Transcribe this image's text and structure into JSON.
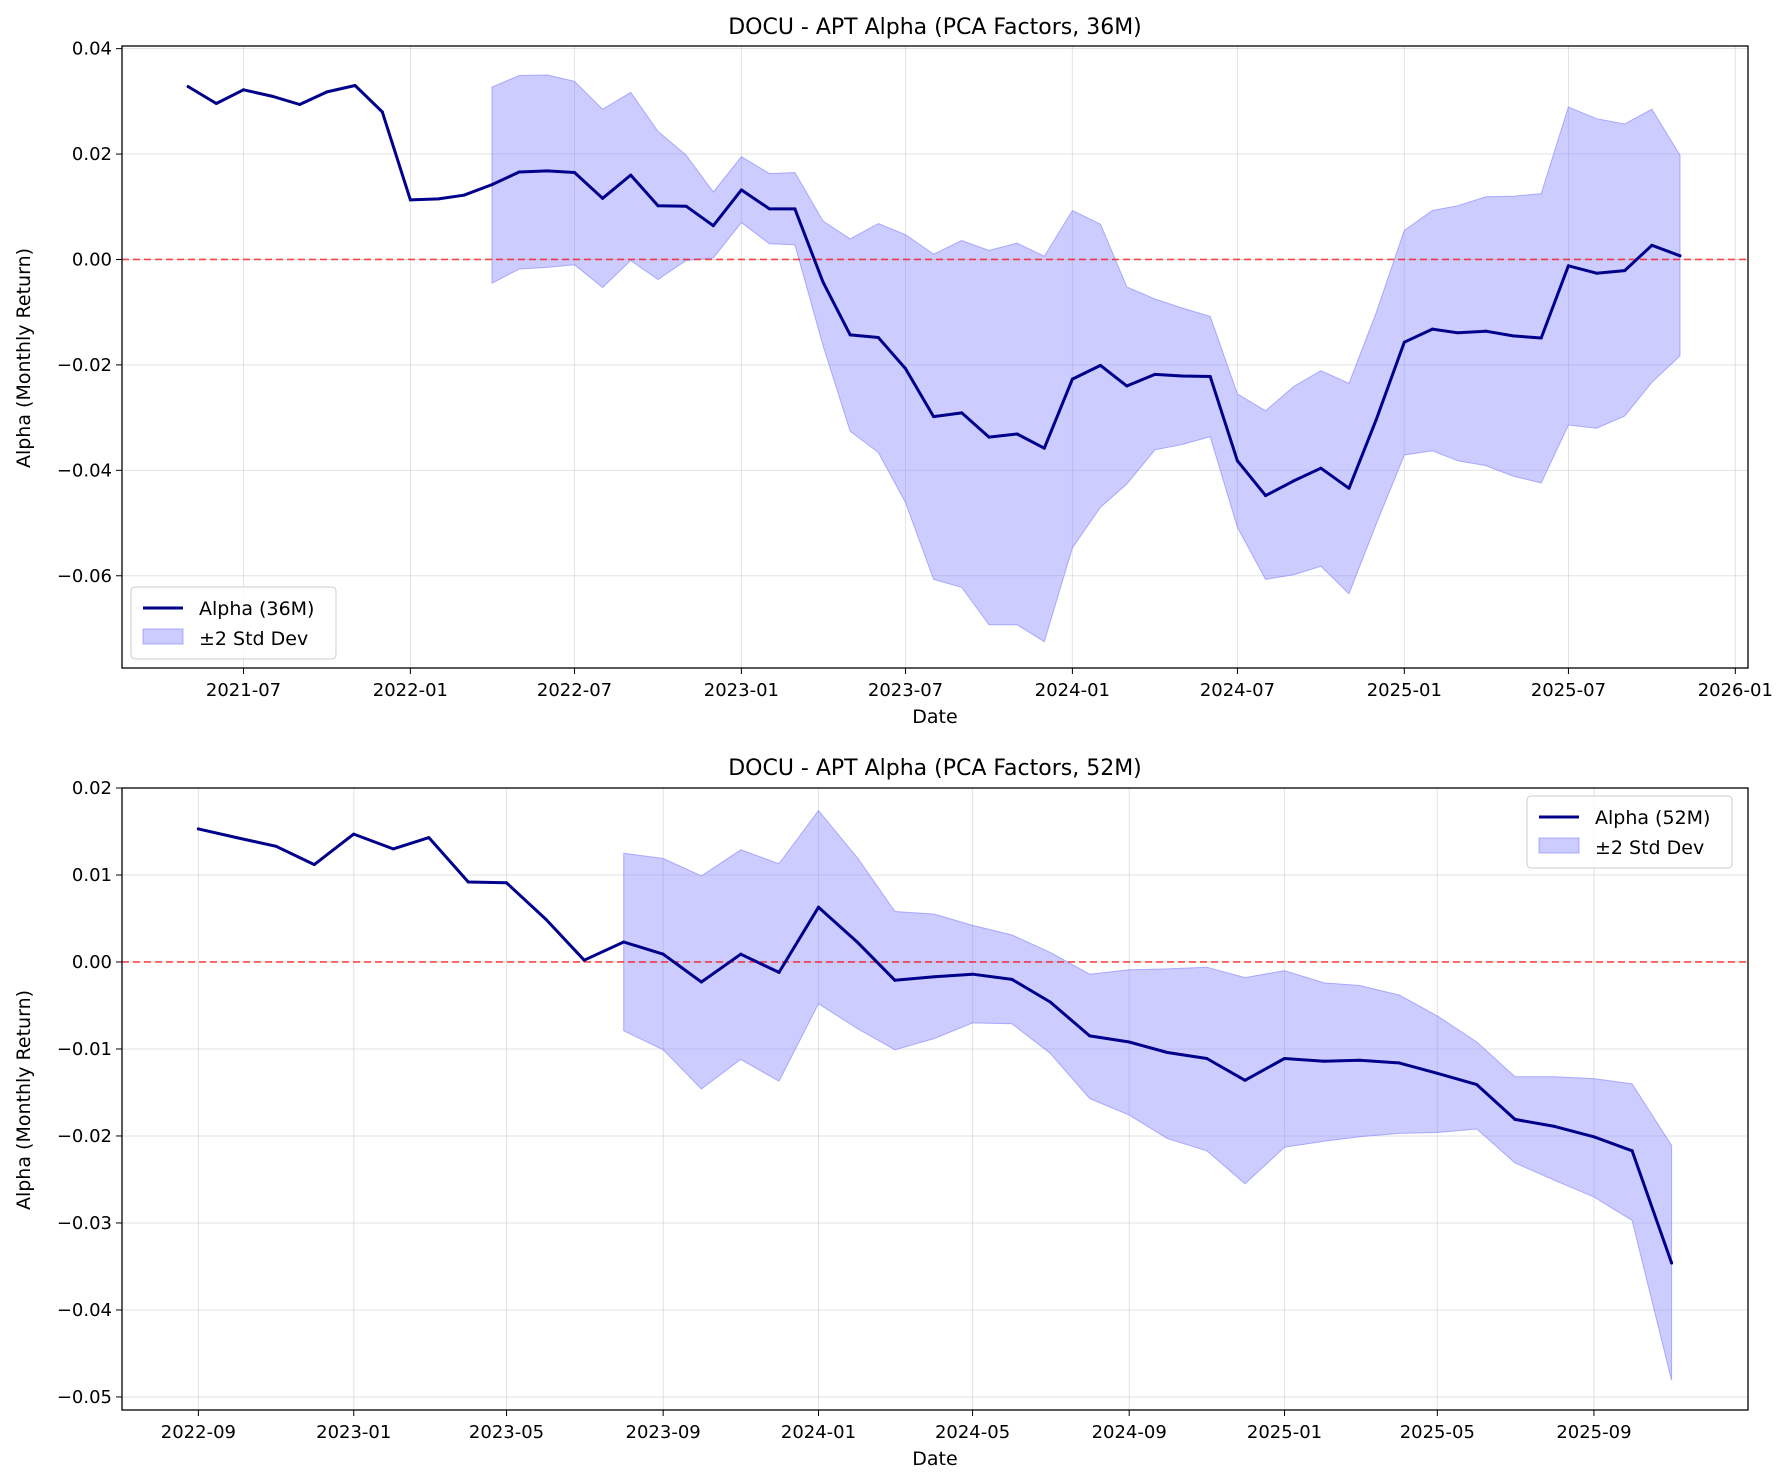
{
  "chart_data": [
    {
      "type": "line",
      "title": "DOCU - APT Alpha (PCA Factors, 36M)",
      "xlabel": "Date",
      "ylabel": "Alpha (Monthly Return)",
      "xlim": [
        "2021-02-17",
        "2026-01-15"
      ],
      "ylim": [
        -0.0775,
        0.0405
      ],
      "xticks": [
        "2021-07",
        "2022-01",
        "2022-07",
        "2023-01",
        "2023-07",
        "2024-01",
        "2024-07",
        "2025-01",
        "2025-07",
        "2026-01"
      ],
      "yticks": [
        -0.06,
        -0.04,
        -0.02,
        0.0,
        0.02,
        0.04
      ],
      "ytick_labels": [
        "−0.06",
        "−0.04",
        "−0.02",
        "0.00",
        "0.02",
        "0.04"
      ],
      "grid": true,
      "legend": "lower-left",
      "reference_line": {
        "y": 0.0,
        "color": "#ff0000",
        "style": "dashed"
      },
      "series": [
        {
          "name": "Alpha (36M)",
          "color": "#00008b",
          "x": [
            "2021-05",
            "2021-06",
            "2021-07",
            "2021-08",
            "2021-09",
            "2021-10",
            "2021-11",
            "2021-12",
            "2022-01",
            "2022-02",
            "2022-03",
            "2022-04",
            "2022-05",
            "2022-06",
            "2022-07",
            "2022-08",
            "2022-09",
            "2022-10",
            "2022-11",
            "2022-12",
            "2023-01",
            "2023-02",
            "2023-03",
            "2023-04",
            "2023-05",
            "2023-06",
            "2023-07",
            "2023-08",
            "2023-09",
            "2023-10",
            "2023-11",
            "2023-12",
            "2024-01",
            "2024-02",
            "2024-03",
            "2024-04",
            "2024-05",
            "2024-06",
            "2024-07",
            "2024-08",
            "2024-09",
            "2024-10",
            "2024-11",
            "2024-12",
            "2025-01",
            "2025-02",
            "2025-03",
            "2025-04",
            "2025-05",
            "2025-06",
            "2025-07",
            "2025-08",
            "2025-09",
            "2025-10",
            "2025-11"
          ],
          "y": [
            0.0328,
            0.0296,
            0.0322,
            0.031,
            0.0294,
            0.0318,
            0.033,
            0.028,
            0.0113,
            0.0115,
            0.0122,
            0.0142,
            0.0166,
            0.0168,
            0.0165,
            0.0116,
            0.016,
            0.0102,
            0.0101,
            0.0064,
            0.0132,
            0.0096,
            0.0096,
            -0.0043,
            -0.0143,
            -0.0148,
            -0.0207,
            -0.0298,
            -0.0291,
            -0.0337,
            -0.0331,
            -0.0358,
            -0.0227,
            -0.0201,
            -0.024,
            -0.0218,
            -0.0221,
            -0.0222,
            -0.0382,
            -0.0448,
            -0.042,
            -0.0396,
            -0.0434,
            -0.0304,
            -0.0157,
            -0.0132,
            -0.0139,
            -0.0136,
            -0.0145,
            -0.0149,
            -0.0012,
            -0.0026,
            -0.0021,
            0.0027,
            0.0007
          ]
        }
      ],
      "band": {
        "name": "±2 Std Dev",
        "color": "#8080ff",
        "x": [
          "2022-04",
          "2022-05",
          "2022-06",
          "2022-07",
          "2022-08",
          "2022-09",
          "2022-10",
          "2022-11",
          "2022-12",
          "2023-01",
          "2023-02",
          "2023-03",
          "2023-04",
          "2023-05",
          "2023-06",
          "2023-07",
          "2023-08",
          "2023-09",
          "2023-10",
          "2023-11",
          "2023-12",
          "2024-01",
          "2024-02",
          "2024-03",
          "2024-04",
          "2024-05",
          "2024-06",
          "2024-07",
          "2024-08",
          "2024-09",
          "2024-10",
          "2024-11",
          "2024-12",
          "2025-01",
          "2025-02",
          "2025-03",
          "2025-04",
          "2025-05",
          "2025-06",
          "2025-07",
          "2025-08",
          "2025-09",
          "2025-10",
          "2025-11"
        ],
        "upper": [
          0.0327,
          0.0349,
          0.035,
          0.0338,
          0.0285,
          0.0317,
          0.0243,
          0.0198,
          0.0128,
          0.0195,
          0.0163,
          0.0165,
          0.0073,
          0.0039,
          0.0068,
          0.0047,
          0.001,
          0.0036,
          0.0017,
          0.0031,
          0.0006,
          0.0093,
          0.0067,
          -0.0052,
          -0.0075,
          -0.0092,
          -0.0108,
          -0.0255,
          -0.0287,
          -0.0241,
          -0.0211,
          -0.0235,
          -0.0101,
          0.0055,
          0.0093,
          0.0102,
          0.0119,
          0.012,
          0.0125,
          0.0289,
          0.0267,
          0.0257,
          0.0285,
          0.0198
        ],
        "lower": [
          -0.0045,
          -0.0018,
          -0.0015,
          -0.001,
          -0.0053,
          -0.0002,
          -0.0038,
          -0.0002,
          0.0003,
          0.007,
          0.003,
          0.0028,
          -0.0163,
          -0.0326,
          -0.0366,
          -0.0461,
          -0.0607,
          -0.0622,
          -0.0693,
          -0.0693,
          -0.0725,
          -0.0547,
          -0.047,
          -0.0426,
          -0.0361,
          -0.0351,
          -0.0336,
          -0.0508,
          -0.0607,
          -0.0598,
          -0.0582,
          -0.0634,
          -0.0502,
          -0.0371,
          -0.0363,
          -0.0382,
          -0.0391,
          -0.0411,
          -0.0424,
          -0.0314,
          -0.032,
          -0.0297,
          -0.0233,
          -0.0183
        ]
      }
    },
    {
      "type": "line",
      "title": "DOCU - APT Alpha (PCA Factors, 52M)",
      "xlabel": "Date",
      "ylabel": "Alpha (Monthly Return)",
      "xlim": [
        "2022-07-03",
        "2025-12-31"
      ],
      "ylim": [
        -0.0515,
        0.02
      ],
      "xticks": [
        "2022-09",
        "2023-01",
        "2023-05",
        "2023-09",
        "2024-01",
        "2024-05",
        "2024-09",
        "2025-01",
        "2025-05",
        "2025-09"
      ],
      "yticks": [
        -0.05,
        -0.04,
        -0.03,
        -0.02,
        -0.01,
        0.0,
        0.01,
        0.02
      ],
      "ytick_labels": [
        "−0.05",
        "−0.04",
        "−0.03",
        "−0.02",
        "−0.01",
        "0.00",
        "0.01",
        "0.02"
      ],
      "grid": true,
      "legend": "upper-right",
      "reference_line": {
        "y": 0.0,
        "color": "#ff0000",
        "style": "dashed"
      },
      "series": [
        {
          "name": "Alpha (52M)",
          "color": "#00008b",
          "x": [
            "2022-09",
            "2022-10",
            "2022-11",
            "2022-12",
            "2023-01",
            "2023-02",
            "2023-03",
            "2023-04",
            "2023-05",
            "2023-06",
            "2023-07",
            "2023-08",
            "2023-09",
            "2023-10",
            "2023-11",
            "2023-12",
            "2024-01",
            "2024-02",
            "2024-03",
            "2024-04",
            "2024-05",
            "2024-06",
            "2024-07",
            "2024-08",
            "2024-09",
            "2024-10",
            "2024-11",
            "2024-12",
            "2025-01",
            "2025-02",
            "2025-03",
            "2025-04",
            "2025-05",
            "2025-06",
            "2025-07",
            "2025-08",
            "2025-09",
            "2025-10",
            "2025-11"
          ],
          "y": [
            0.0153,
            0.0143,
            0.0133,
            0.0112,
            0.0147,
            0.013,
            0.0143,
            0.0092,
            0.0091,
            0.0049,
            0.0002,
            0.0023,
            0.0009,
            -0.0023,
            0.0009,
            -0.0012,
            0.0063,
            0.0022,
            -0.0021,
            -0.0017,
            -0.0014,
            -0.002,
            -0.0046,
            -0.0085,
            -0.0092,
            -0.0104,
            -0.0111,
            -0.0136,
            -0.0111,
            -0.0114,
            -0.0113,
            -0.0116,
            -0.0128,
            -0.0141,
            -0.0181,
            -0.0189,
            -0.0201,
            -0.0217,
            -0.0346
          ]
        }
      ],
      "band": {
        "name": "±2 Std Dev",
        "color": "#8080ff",
        "x": [
          "2023-08",
          "2023-09",
          "2023-10",
          "2023-11",
          "2023-12",
          "2024-01",
          "2024-02",
          "2024-03",
          "2024-04",
          "2024-05",
          "2024-06",
          "2024-07",
          "2024-08",
          "2024-09",
          "2024-10",
          "2024-11",
          "2024-12",
          "2025-01",
          "2025-02",
          "2025-03",
          "2025-04",
          "2025-05",
          "2025-06",
          "2025-07",
          "2025-08",
          "2025-09",
          "2025-10",
          "2025-11"
        ],
        "upper": [
          0.0125,
          0.0119,
          0.0099,
          0.0129,
          0.0113,
          0.0174,
          0.0119,
          0.0058,
          0.0055,
          0.0042,
          0.0031,
          0.0011,
          -0.0014,
          -0.0009,
          -0.0008,
          -0.0006,
          -0.0018,
          -0.001,
          -0.0024,
          -0.0027,
          -0.0038,
          -0.0062,
          -0.0092,
          -0.0132,
          -0.0132,
          -0.0134,
          -0.014,
          -0.0211
        ],
        "lower": [
          -0.0079,
          -0.0101,
          -0.0146,
          -0.0112,
          -0.0137,
          -0.0048,
          -0.0077,
          -0.0101,
          -0.0088,
          -0.007,
          -0.0071,
          -0.0105,
          -0.0157,
          -0.0176,
          -0.0203,
          -0.0217,
          -0.0255,
          -0.0213,
          -0.0206,
          -0.0201,
          -0.0197,
          -0.0196,
          -0.0192,
          -0.0231,
          -0.0251,
          -0.027,
          -0.0297,
          -0.0481
        ]
      }
    }
  ]
}
